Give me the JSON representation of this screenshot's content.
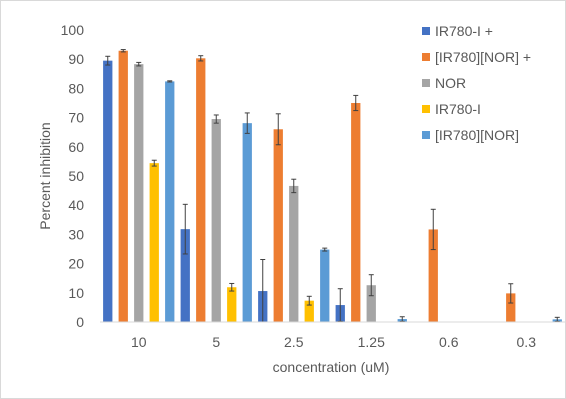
{
  "chart_data": {
    "type": "bar",
    "title": "",
    "xlabel": "concentration (uM)",
    "ylabel": "Percent inhibition",
    "ylim": [
      0,
      100
    ],
    "yticks": [
      0,
      10,
      20,
      30,
      40,
      50,
      60,
      70,
      80,
      90,
      100
    ],
    "grid": false,
    "legend_position": "top-right",
    "categories": [
      "10",
      "5",
      "2.5",
      "1.25",
      "0.6",
      "0.3"
    ],
    "series": [
      {
        "name": "IR780-I +",
        "color": "#4472c4",
        "values": [
          89.5,
          31.8,
          10.6,
          5.8,
          null,
          null
        ],
        "errors": [
          1.5,
          8.5,
          10.8,
          5.6,
          null,
          null
        ]
      },
      {
        "name": "[IR780][NOR] +",
        "color": "#ed7d31",
        "values": [
          92.9,
          90.3,
          66.0,
          75.0,
          31.7,
          9.8
        ],
        "errors": [
          0.4,
          0.9,
          5.3,
          2.6,
          6.9,
          3.3
        ]
      },
      {
        "name": "NOR",
        "color": "#a5a5a5",
        "values": [
          88.3,
          69.5,
          46.6,
          12.6,
          null,
          null
        ],
        "errors": [
          0.6,
          1.4,
          2.3,
          3.6,
          null,
          null
        ]
      },
      {
        "name": "IR780-I",
        "color": "#ffc000",
        "values": [
          54.4,
          11.9,
          7.3,
          null,
          null,
          null
        ],
        "errors": [
          1.0,
          1.3,
          1.5,
          null,
          null,
          null
        ]
      },
      {
        "name": "[IR780][NOR]",
        "color": "#5b9bd5",
        "values": [
          82.4,
          68.1,
          24.8,
          1.0,
          null,
          0.9
        ],
        "errors": [
          0.2,
          3.5,
          0.5,
          0.8,
          null,
          0.7
        ]
      }
    ]
  }
}
